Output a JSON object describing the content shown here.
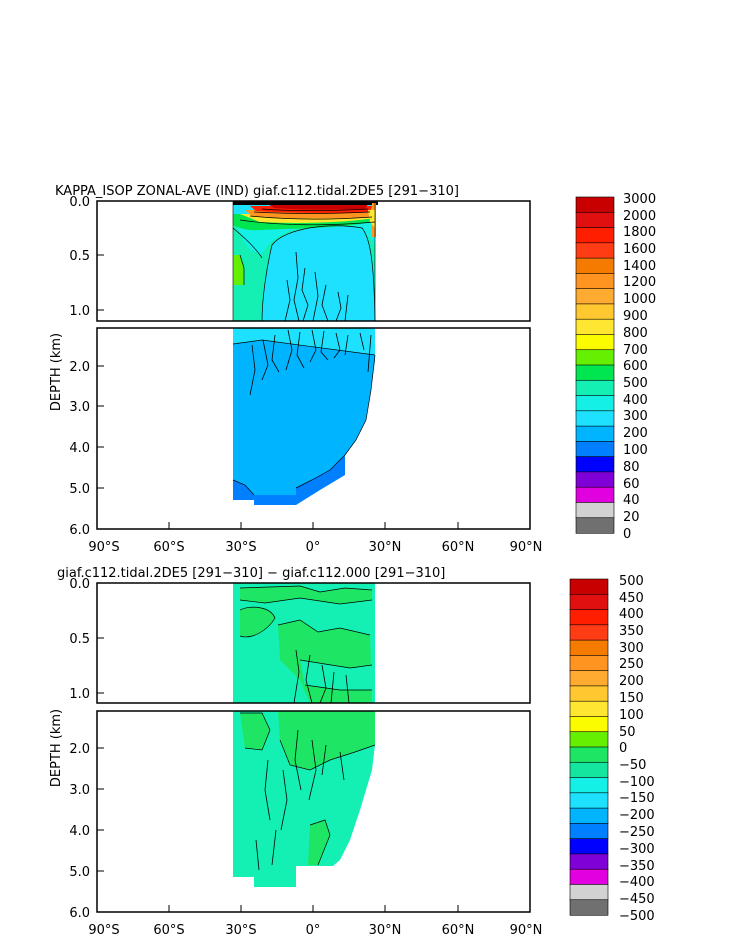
{
  "panels": [
    {
      "title": "KAPPA_ISOP ZONAL-AVE (IND) giaf.c112.tidal.2DE5 [291-310]",
      "ylabel": "DEPTH (km)",
      "xticks": [
        "90°S",
        "60°S",
        "30°S",
        "0°",
        "30°N",
        "60°N",
        "90°N"
      ],
      "upper_yticks": [
        "0.0",
        "0.5",
        "1.0"
      ],
      "lower_yticks": [
        "2.0",
        "3.0",
        "4.0",
        "5.0",
        "6.0"
      ],
      "colorbar_labels": [
        "3000",
        "2000",
        "1800",
        "1600",
        "1400",
        "1200",
        "1000",
        "900",
        "800",
        "700",
        "600",
        "500",
        "400",
        "300",
        "200",
        "100",
        "80",
        "60",
        "40",
        "20",
        "0"
      ],
      "colorbar_colors": [
        "#c80000",
        "#e01010",
        "#ff1e00",
        "#ff3c14",
        "#f57a00",
        "#ff9420",
        "#ffaa30",
        "#ffc830",
        "#ffe630",
        "#fcfc00",
        "#64f000",
        "#00e650",
        "#14f0b4",
        "#14f0e6",
        "#1ee1ff",
        "#00b4ff",
        "#0080ff",
        "#0000ff",
        "#8000d8",
        "#e000e0",
        "#d2d2d2",
        "#707070"
      ]
    },
    {
      "title": "giaf.c112.tidal.2DE5 [291-310] - giaf.c112.000 [291-310]",
      "ylabel": "DEPTH (km)",
      "xticks": [
        "90°S",
        "60°S",
        "30°S",
        "0°",
        "30°N",
        "60°N",
        "90°N"
      ],
      "upper_yticks": [
        "0.0",
        "0.5",
        "1.0"
      ],
      "lower_yticks": [
        "2.0",
        "3.0",
        "4.0",
        "5.0",
        "6.0"
      ],
      "colorbar_labels": [
        "500",
        "450",
        "400",
        "350",
        "300",
        "250",
        "200",
        "150",
        "100",
        "50",
        "0",
        "-50",
        "-100",
        "-150",
        "-200",
        "-250",
        "-300",
        "-350",
        "-400",
        "-450",
        "-500"
      ],
      "colorbar_colors": [
        "#c80000",
        "#e01010",
        "#ff1e00",
        "#ff3c14",
        "#f57a00",
        "#ff9420",
        "#ffaa30",
        "#ffc830",
        "#ffe630",
        "#fcfc00",
        "#64f000",
        "#1ee664",
        "#14e6a0",
        "#14f0e6",
        "#1ee1ff",
        "#00b4ff",
        "#0080ff",
        "#0000ff",
        "#8000d8",
        "#e000e0",
        "#d2d2d2",
        "#707070"
      ]
    }
  ],
  "chart_data": [
    {
      "type": "heatmap",
      "title": "KAPPA_ISOP ZONAL-AVE (IND) giaf.c112.tidal.2DE5 [291-310]",
      "xlabel": "",
      "ylabel": "DEPTH (km)",
      "xlim": [
        -90,
        90
      ],
      "ylim": [
        6.0,
        0.0
      ],
      "depth_axis_break_km": 1.2,
      "data_extent_lat": [
        -34,
        25
      ],
      "field_by_depth": [
        {
          "depth_km": [
            0.0,
            0.05
          ],
          "value_range": [
            1800,
            3000
          ]
        },
        {
          "depth_km": [
            0.05,
            0.15
          ],
          "value_range": [
            1000,
            2000
          ]
        },
        {
          "depth_km": [
            0.15,
            0.3
          ],
          "value_range": [
            500,
            900
          ]
        },
        {
          "depth_km": [
            0.3,
            1.0
          ],
          "value_range": [
            300,
            700
          ]
        },
        {
          "depth_km": [
            1.0,
            5.3
          ],
          "value_range": [
            200,
            400
          ]
        },
        {
          "depth_km": [
            4.8,
            5.4
          ],
          "value_range": [
            100,
            200
          ]
        }
      ],
      "colorbar_levels": [
        0,
        20,
        40,
        60,
        80,
        100,
        200,
        300,
        400,
        500,
        600,
        700,
        800,
        900,
        1000,
        1200,
        1400,
        1600,
        1800,
        2000,
        3000
      ]
    },
    {
      "type": "heatmap",
      "title": "giaf.c112.tidal.2DE5 [291-310] - giaf.c112.000 [291-310]",
      "xlabel": "",
      "ylabel": "DEPTH (km)",
      "xlim": [
        -90,
        90
      ],
      "ylim": [
        6.0,
        0.0
      ],
      "depth_axis_break_km": 1.2,
      "data_extent_lat": [
        -34,
        25
      ],
      "field_by_depth": [
        {
          "depth_km": [
            0.0,
            1.1
          ],
          "value_range": [
            -50,
            50
          ]
        },
        {
          "depth_km": [
            1.1,
            5.3
          ],
          "value_range": [
            -50,
            50
          ]
        }
      ],
      "colorbar_levels": [
        -500,
        -450,
        -400,
        -350,
        -300,
        -250,
        -200,
        -150,
        -100,
        -50,
        0,
        50,
        100,
        150,
        200,
        250,
        300,
        350,
        400,
        450,
        500
      ]
    }
  ]
}
